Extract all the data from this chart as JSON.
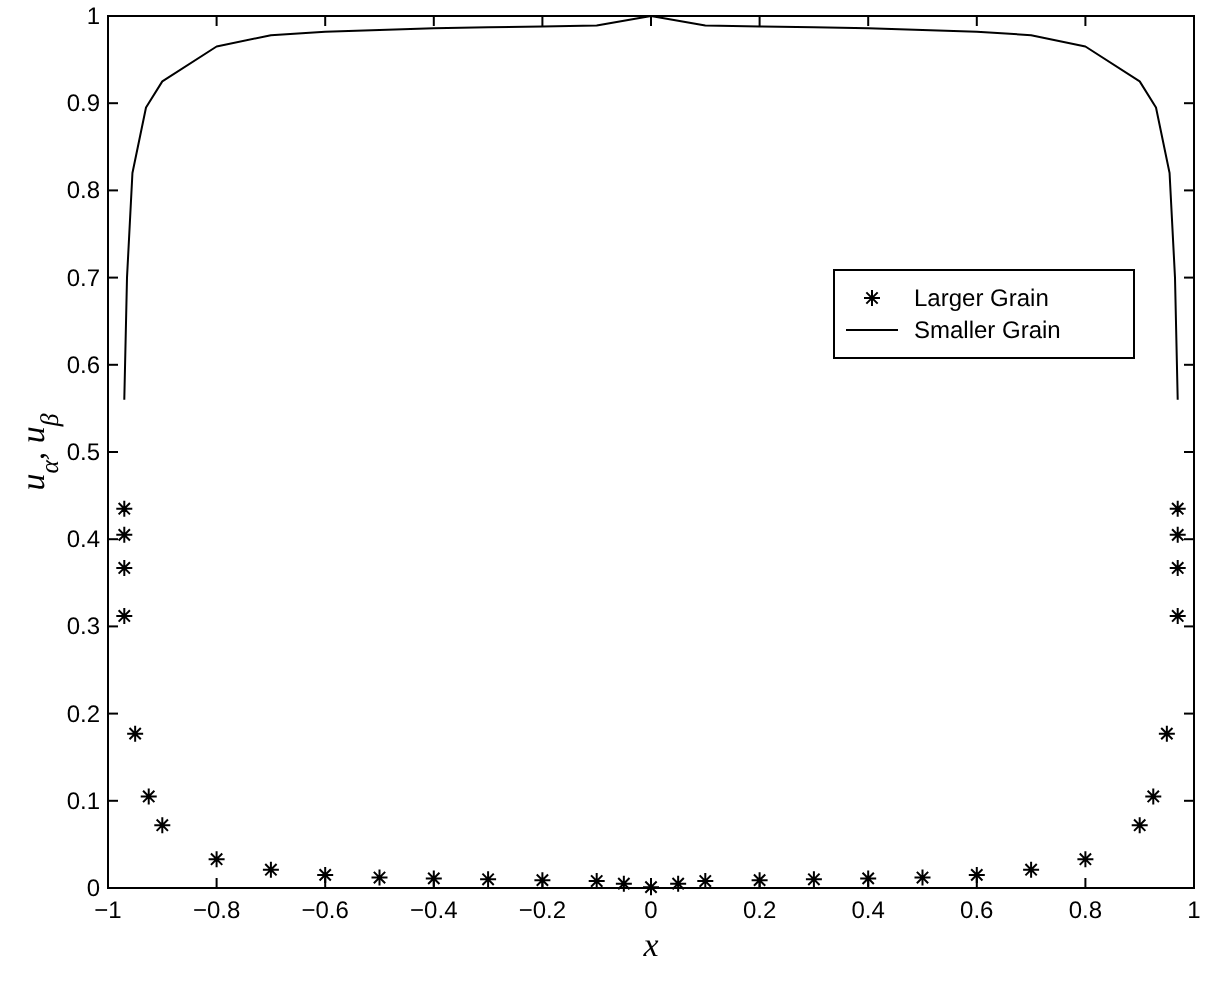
{
  "chart_data": {
    "type": "scatter",
    "xlabel": "x",
    "ylabel": "u$_{α}$, u$_{β}$",
    "xlim": [
      -1,
      1
    ],
    "ylim": [
      0,
      1
    ],
    "xticks": [
      -1,
      -0.8,
      -0.6,
      -0.4,
      -0.2,
      0,
      0.2,
      0.4,
      0.6,
      0.8,
      1
    ],
    "yticks": [
      0,
      0.1,
      0.2,
      0.3,
      0.4,
      0.5,
      0.6,
      0.7,
      0.8,
      0.9,
      1
    ],
    "grid": false,
    "legend": "right",
    "series": [
      {
        "name": "Larger Grain",
        "marker": "cross",
        "color": "#000000",
        "x": [
          -0.97,
          -0.97,
          -0.97,
          -0.97,
          -0.95,
          -0.925,
          -0.9,
          -0.8,
          -0.7,
          -0.6,
          -0.5,
          -0.4,
          -0.3,
          -0.2,
          -0.1,
          -0.05,
          0,
          0.05,
          0.1,
          0.2,
          0.3,
          0.4,
          0.5,
          0.6,
          0.7,
          0.8,
          0.9,
          0.925,
          0.95,
          0.97,
          0.97,
          0.97,
          0.97
        ],
        "values": [
          0.435,
          0.405,
          0.367,
          0.312,
          0.177,
          0.105,
          0.072,
          0.033,
          0.021,
          0.015,
          0.012,
          0.011,
          0.01,
          0.009,
          0.008,
          0.005,
          0.001,
          0.005,
          0.008,
          0.009,
          0.01,
          0.011,
          0.012,
          0.015,
          0.021,
          0.033,
          0.072,
          0.105,
          0.177,
          0.312,
          0.367,
          0.405,
          0.435
        ]
      },
      {
        "name": "Smaller Grain",
        "type": "line",
        "marker": "none",
        "line_style": "solid",
        "color": "#000000",
        "x": [
          -0.97,
          -0.965,
          -0.955,
          -0.93,
          -0.9,
          -0.8,
          -0.7,
          -0.6,
          -0.5,
          -0.4,
          -0.3,
          -0.2,
          -0.1,
          0,
          0.1,
          0.2,
          0.3,
          0.4,
          0.5,
          0.6,
          0.7,
          0.8,
          0.9,
          0.93,
          0.955,
          0.965,
          0.97
        ],
        "values": [
          0.56,
          0.7,
          0.82,
          0.895,
          0.925,
          0.965,
          0.978,
          0.982,
          0.984,
          0.986,
          0.987,
          0.988,
          0.989,
          1,
          0.989,
          0.988,
          0.987,
          0.986,
          0.984,
          0.982,
          0.978,
          0.965,
          0.925,
          0.895,
          0.82,
          0.7,
          0.56
        ]
      }
    ]
  }
}
